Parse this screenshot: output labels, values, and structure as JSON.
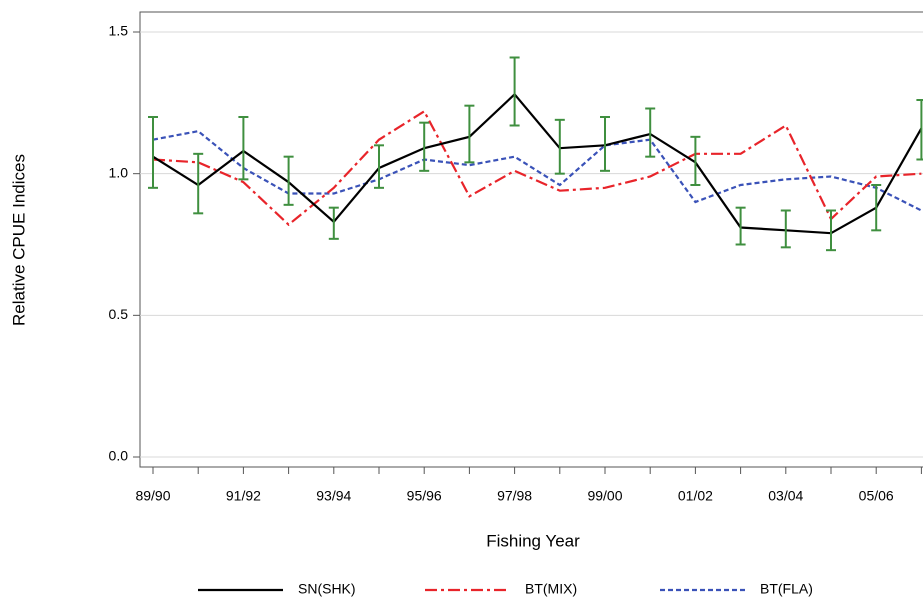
{
  "chart_data": {
    "type": "line",
    "x_label": "Fishing Year",
    "y_label": "Relative CPUE Indices",
    "categories": [
      "89/90",
      null,
      "91/92",
      null,
      "93/94",
      null,
      "95/96",
      null,
      "97/98",
      null,
      "99/00",
      null,
      "01/02",
      null,
      "03/04",
      null,
      "05/06",
      null
    ],
    "ylim": [
      0,
      1.5
    ],
    "yticks": [
      {
        "value": 0,
        "label": "0.0"
      },
      0.5,
      {
        "value": 1,
        "label": "1.0"
      },
      1.5
    ],
    "grid": true,
    "error_color": "#3f8f3f",
    "series": [
      {
        "name": "SN(SHK)",
        "color": "#000000",
        "dash": "solid",
        "values": [
          1.06,
          0.96,
          1.08,
          0.97,
          0.83,
          1.02,
          1.09,
          1.13,
          1.28,
          1.09,
          1.1,
          1.14,
          1.04,
          0.81,
          0.8,
          0.79,
          0.88,
          1.16
        ],
        "lower": [
          0.95,
          0.86,
          0.98,
          0.89,
          0.77,
          0.95,
          1.01,
          1.04,
          1.17,
          1.0,
          1.01,
          1.06,
          0.96,
          0.75,
          0.74,
          0.73,
          0.8,
          1.05
        ],
        "upper": [
          1.2,
          1.07,
          1.2,
          1.06,
          0.88,
          1.1,
          1.18,
          1.24,
          1.41,
          1.19,
          1.2,
          1.23,
          1.13,
          0.88,
          0.87,
          0.87,
          0.96,
          1.26
        ]
      },
      {
        "name": "BT(MIX)",
        "color": "#e8242a",
        "dash": "dashdot",
        "values": [
          1.05,
          1.04,
          0.97,
          0.82,
          0.95,
          1.12,
          1.22,
          0.92,
          1.01,
          0.94,
          0.95,
          0.99,
          1.07,
          1.07,
          1.17,
          0.84,
          0.99,
          1.0
        ]
      },
      {
        "name": "BT(FLA)",
        "color": "#3a52b8",
        "dash": "dashed",
        "values": [
          1.12,
          1.15,
          1.02,
          0.93,
          0.93,
          0.98,
          1.05,
          1.03,
          1.06,
          0.96,
          1.1,
          1.12,
          0.9,
          0.96,
          0.98,
          0.99,
          0.95,
          0.87
        ]
      }
    ]
  }
}
